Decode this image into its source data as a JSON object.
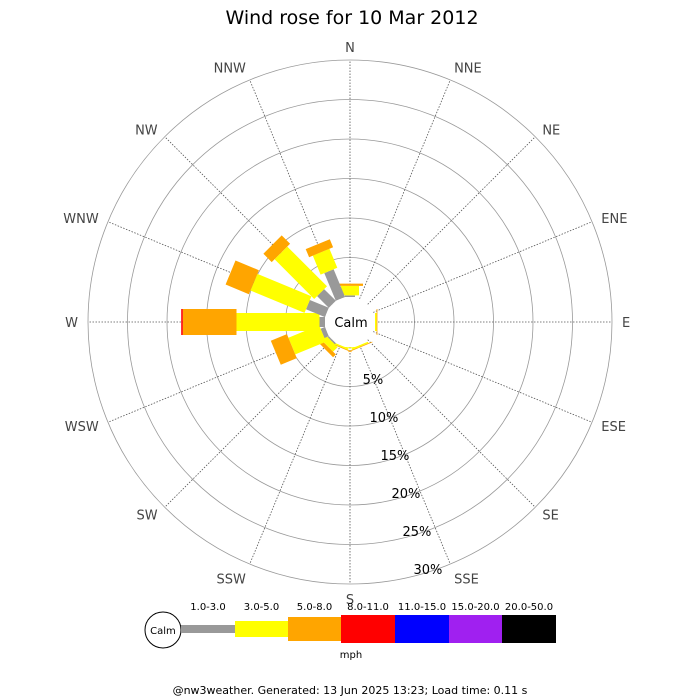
{
  "chart_data": {
    "type": "windrose",
    "title": "Wind rose for 10 Mar 2012",
    "directions": [
      "N",
      "NNE",
      "NE",
      "ENE",
      "E",
      "ESE",
      "SE",
      "SSE",
      "S",
      "SSW",
      "SW",
      "WSW",
      "W",
      "WNW",
      "NW",
      "NNW"
    ],
    "ring_labels": [
      "5%",
      "10%",
      "15%",
      "20%",
      "25%",
      "30%"
    ],
    "ring_values": [
      5,
      10,
      15,
      20,
      25,
      30
    ],
    "max_percent": 30,
    "calm_label": "Calm",
    "unit": "mph",
    "bins": [
      {
        "label": "1.0-3.0",
        "color": "#999999"
      },
      {
        "label": "3.0-5.0",
        "color": "#ffff00"
      },
      {
        "label": "5.0-8.0",
        "color": "#ffa500"
      },
      {
        "label": "8.0-11.0",
        "color": "#ff0000"
      },
      {
        "label": "11.0-15.0",
        "color": "#0000ff"
      },
      {
        "label": "15.0-20.0",
        "color": "#a020f0"
      },
      {
        "label": "20.0-50.0",
        "color": "#000000"
      }
    ],
    "series": [
      {
        "direction": "N",
        "values": [
          0.2,
          1.2,
          0.3,
          0,
          0,
          0,
          0
        ]
      },
      {
        "direction": "E",
        "values": [
          0,
          0.2,
          0.1,
          0,
          0,
          0,
          0
        ]
      },
      {
        "direction": "SSE",
        "values": [
          0,
          0.2,
          0.1,
          0,
          0,
          0,
          0
        ]
      },
      {
        "direction": "S",
        "values": [
          0,
          0.1,
          0,
          0,
          0,
          0,
          0
        ]
      },
      {
        "direction": "SSW",
        "values": [
          0,
          0.2,
          0.1,
          0,
          0,
          0,
          0
        ]
      },
      {
        "direction": "SW",
        "values": [
          0.2,
          0.8,
          0.5,
          0,
          0,
          0,
          0
        ]
      },
      {
        "direction": "WSW",
        "values": [
          0.6,
          4.2,
          2.2,
          0,
          0,
          0,
          0
        ]
      },
      {
        "direction": "W",
        "values": [
          0.7,
          10.5,
          6.8,
          0.2,
          0,
          0,
          0
        ]
      },
      {
        "direction": "WNW",
        "values": [
          2.6,
          7.4,
          3.2,
          0,
          0,
          0,
          0
        ]
      },
      {
        "direction": "NW",
        "values": [
          2.1,
          7.1,
          1.5,
          0,
          0,
          0,
          0
        ]
      },
      {
        "direction": "NNW",
        "values": [
          3.8,
          2.6,
          1.1,
          0,
          0,
          0,
          0
        ]
      }
    ]
  },
  "footer": "@nw3weather. Generated: 13 Jun 2025 13:23; Load time: 0.11 s"
}
